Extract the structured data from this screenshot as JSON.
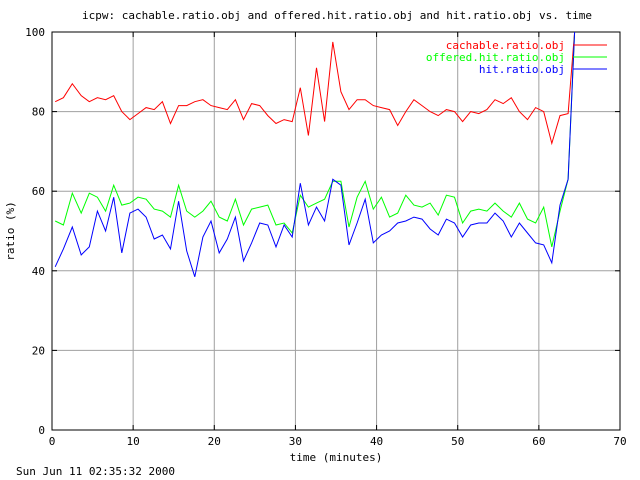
{
  "chart_data": {
    "type": "line",
    "title": "icpw: cachable.ratio.obj and offered.hit.ratio.obj and hit.ratio.obj vs. time",
    "xlabel": "time (minutes)",
    "ylabel": "ratio (%)",
    "xlim": [
      0,
      70
    ],
    "ylim": [
      0,
      100
    ],
    "xticks": [
      "0",
      "10",
      "20",
      "30",
      "40",
      "50",
      "60",
      "70"
    ],
    "yticks": [
      "0",
      "20",
      "40",
      "60",
      "80",
      "100"
    ],
    "grid": true,
    "legend_position": "top-right",
    "footer": "Sun Jun 11 02:35:32 2000",
    "series": [
      {
        "name": "cachable.ratio.obj",
        "color": "#ff0000",
        "points": [
          [
            0.4,
            82.5
          ],
          [
            1.4,
            83.5
          ],
          [
            2.5,
            87
          ],
          [
            3.6,
            84
          ],
          [
            4.6,
            82.5
          ],
          [
            5.6,
            83.5
          ],
          [
            6.6,
            83
          ],
          [
            7.6,
            84
          ],
          [
            8.6,
            80
          ],
          [
            9.6,
            78
          ],
          [
            10.6,
            79.5
          ],
          [
            11.6,
            81
          ],
          [
            12.6,
            80.5
          ],
          [
            13.6,
            82.5
          ],
          [
            14.6,
            77
          ],
          [
            15.6,
            81.5
          ],
          [
            16.6,
            81.5
          ],
          [
            17.6,
            82.5
          ],
          [
            18.6,
            83
          ],
          [
            19.6,
            81.5
          ],
          [
            20.6,
            81
          ],
          [
            21.6,
            80.5
          ],
          [
            22.6,
            83
          ],
          [
            23.6,
            78
          ],
          [
            24.6,
            82
          ],
          [
            25.6,
            81.5
          ],
          [
            26.6,
            79
          ],
          [
            27.6,
            77
          ],
          [
            28.6,
            78
          ],
          [
            29.6,
            77.5
          ],
          [
            30.6,
            86
          ],
          [
            31.6,
            74
          ],
          [
            32.6,
            91
          ],
          [
            33.6,
            77.5
          ],
          [
            34.6,
            97.5
          ],
          [
            35.6,
            85
          ],
          [
            36.6,
            80.5
          ],
          [
            37.6,
            83
          ],
          [
            38.6,
            83
          ],
          [
            39.6,
            81.5
          ],
          [
            40.6,
            81
          ],
          [
            41.6,
            80.5
          ],
          [
            42.6,
            76.5
          ],
          [
            43.6,
            80
          ],
          [
            44.6,
            83
          ],
          [
            45.6,
            81.5
          ],
          [
            46.6,
            80
          ],
          [
            47.6,
            79
          ],
          [
            48.6,
            80.5
          ],
          [
            49.6,
            80
          ],
          [
            50.6,
            77.5
          ],
          [
            51.6,
            80
          ],
          [
            52.6,
            79.5
          ],
          [
            53.6,
            80.5
          ],
          [
            54.6,
            83
          ],
          [
            55.6,
            82
          ],
          [
            56.6,
            83.5
          ],
          [
            57.6,
            80
          ],
          [
            58.6,
            78
          ],
          [
            59.6,
            81
          ],
          [
            60.6,
            80
          ],
          [
            61.6,
            72
          ],
          [
            62.6,
            79
          ],
          [
            63.6,
            79.5
          ],
          [
            64.4,
            100
          ]
        ]
      },
      {
        "name": "offered.hit.ratio.obj",
        "color": "#00ff00",
        "points": [
          [
            0.4,
            52.5
          ],
          [
            1.4,
            51.5
          ],
          [
            2.5,
            59.5
          ],
          [
            3.6,
            54.5
          ],
          [
            4.6,
            59.5
          ],
          [
            5.6,
            58.5
          ],
          [
            6.6,
            55
          ],
          [
            7.6,
            61.5
          ],
          [
            8.6,
            56.5
          ],
          [
            9.6,
            57
          ],
          [
            10.6,
            58.5
          ],
          [
            11.6,
            58
          ],
          [
            12.6,
            55.5
          ],
          [
            13.6,
            55
          ],
          [
            14.6,
            53.5
          ],
          [
            15.6,
            61.5
          ],
          [
            16.6,
            55
          ],
          [
            17.6,
            53.5
          ],
          [
            18.6,
            55
          ],
          [
            19.6,
            57.5
          ],
          [
            20.6,
            53.5
          ],
          [
            21.6,
            52.5
          ],
          [
            22.6,
            58
          ],
          [
            23.6,
            51.5
          ],
          [
            24.6,
            55.5
          ],
          [
            25.6,
            56
          ],
          [
            26.6,
            56.5
          ],
          [
            27.6,
            51.5
          ],
          [
            28.6,
            52
          ],
          [
            29.6,
            49.5
          ],
          [
            30.6,
            59
          ],
          [
            31.6,
            56
          ],
          [
            32.6,
            57
          ],
          [
            33.6,
            58
          ],
          [
            34.6,
            62.5
          ],
          [
            35.6,
            62.5
          ],
          [
            36.6,
            51
          ],
          [
            37.6,
            58.5
          ],
          [
            38.6,
            62.5
          ],
          [
            39.6,
            55.5
          ],
          [
            40.6,
            58.5
          ],
          [
            41.6,
            53.5
          ],
          [
            42.6,
            54.5
          ],
          [
            43.6,
            59
          ],
          [
            44.6,
            56.5
          ],
          [
            45.6,
            56
          ],
          [
            46.6,
            57
          ],
          [
            47.6,
            54
          ],
          [
            48.6,
            59
          ],
          [
            49.6,
            58.5
          ],
          [
            50.6,
            52
          ],
          [
            51.6,
            55
          ],
          [
            52.6,
            55.5
          ],
          [
            53.6,
            55
          ],
          [
            54.6,
            57
          ],
          [
            55.6,
            55
          ],
          [
            56.6,
            53.5
          ],
          [
            57.6,
            57
          ],
          [
            58.6,
            53
          ],
          [
            59.6,
            52
          ],
          [
            60.6,
            56
          ],
          [
            61.6,
            46
          ],
          [
            62.6,
            55
          ],
          [
            63.6,
            63
          ],
          [
            64.4,
            100
          ]
        ]
      },
      {
        "name": "hit.ratio.obj",
        "color": "#0000ff",
        "points": [
          [
            0.4,
            41
          ],
          [
            1.4,
            45.5
          ],
          [
            2.5,
            51
          ],
          [
            3.6,
            44
          ],
          [
            4.6,
            46
          ],
          [
            5.6,
            55
          ],
          [
            6.6,
            50
          ],
          [
            7.6,
            58.5
          ],
          [
            8.6,
            44.5
          ],
          [
            9.6,
            54.5
          ],
          [
            10.6,
            55.5
          ],
          [
            11.6,
            53.5
          ],
          [
            12.6,
            48
          ],
          [
            13.6,
            49
          ],
          [
            14.6,
            45.5
          ],
          [
            15.6,
            57.5
          ],
          [
            16.6,
            45
          ],
          [
            17.6,
            38.5
          ],
          [
            18.6,
            48.5
          ],
          [
            19.6,
            52.5
          ],
          [
            20.6,
            44.5
          ],
          [
            21.6,
            48
          ],
          [
            22.6,
            53.5
          ],
          [
            23.6,
            42.5
          ],
          [
            24.6,
            47
          ],
          [
            25.6,
            52
          ],
          [
            26.6,
            51.5
          ],
          [
            27.6,
            46
          ],
          [
            28.6,
            51.5
          ],
          [
            29.6,
            48.5
          ],
          [
            30.6,
            62
          ],
          [
            31.6,
            51.5
          ],
          [
            32.6,
            56
          ],
          [
            33.6,
            52.5
          ],
          [
            34.6,
            63
          ],
          [
            35.6,
            61.5
          ],
          [
            36.6,
            46.5
          ],
          [
            37.6,
            52
          ],
          [
            38.6,
            58
          ],
          [
            39.6,
            47
          ],
          [
            40.6,
            49
          ],
          [
            41.6,
            50
          ],
          [
            42.6,
            52
          ],
          [
            43.6,
            52.5
          ],
          [
            44.6,
            53.5
          ],
          [
            45.6,
            53
          ],
          [
            46.6,
            50.5
          ],
          [
            47.6,
            49
          ],
          [
            48.6,
            53
          ],
          [
            49.6,
            52
          ],
          [
            50.6,
            48.5
          ],
          [
            51.6,
            51.5
          ],
          [
            52.6,
            52
          ],
          [
            53.6,
            52
          ],
          [
            54.6,
            54.5
          ],
          [
            55.6,
            52.5
          ],
          [
            56.6,
            48.5
          ],
          [
            57.6,
            52
          ],
          [
            58.6,
            49.5
          ],
          [
            59.6,
            47
          ],
          [
            60.6,
            46.5
          ],
          [
            61.6,
            42
          ],
          [
            62.6,
            56.5
          ],
          [
            63.6,
            63
          ],
          [
            64.4,
            100
          ]
        ]
      }
    ]
  }
}
